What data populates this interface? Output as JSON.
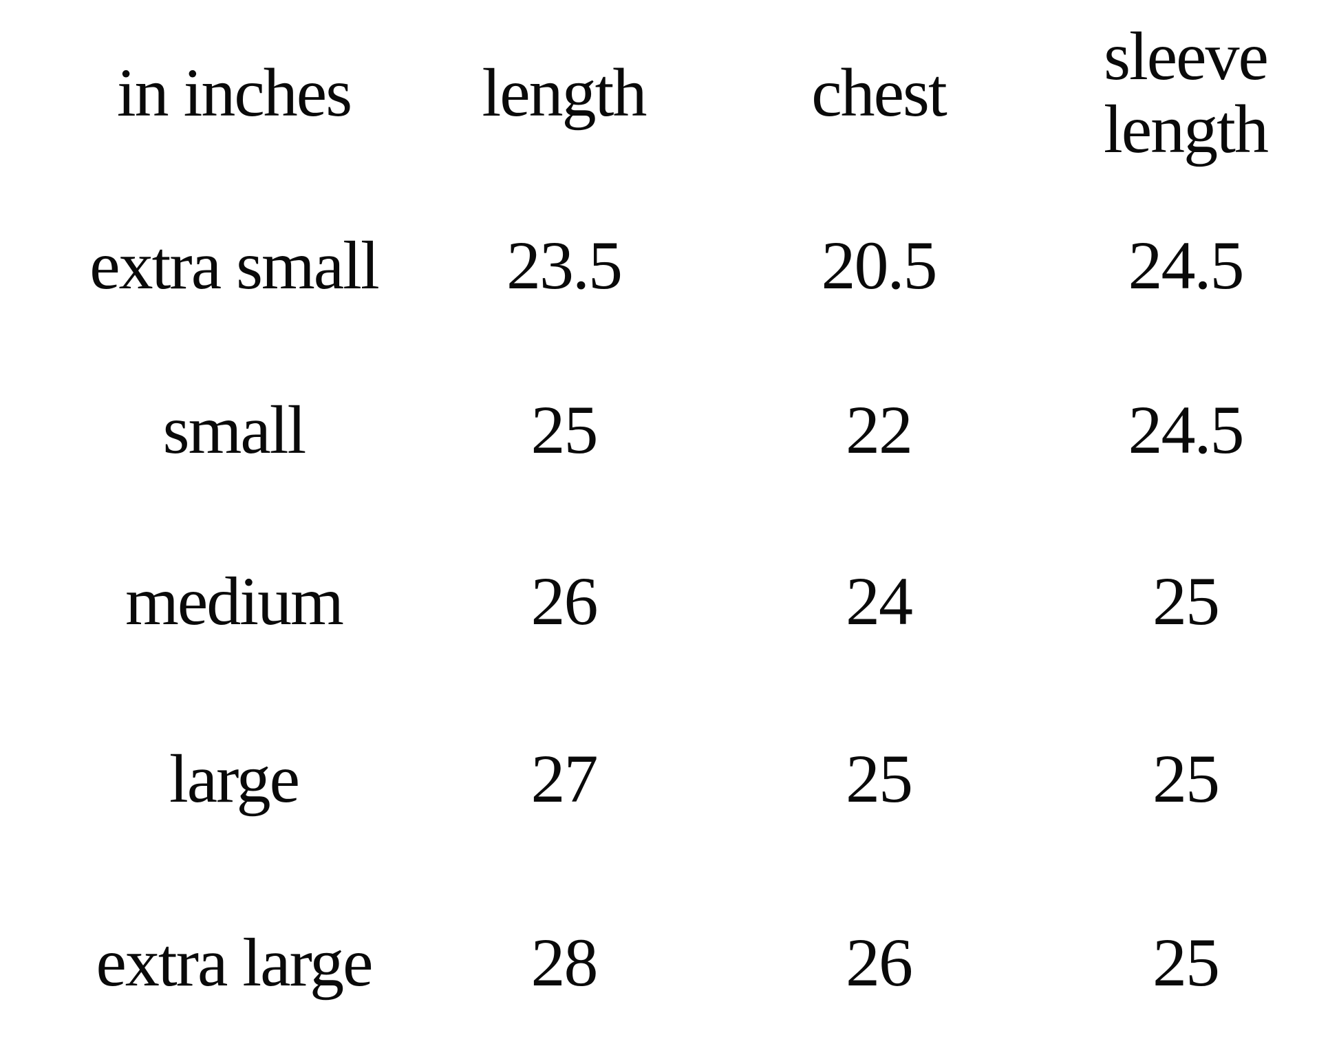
{
  "page": {
    "background": "#ffffff",
    "text_color": "#0a0a0a"
  },
  "size_chart": {
    "unit_header": "in inches",
    "column_headers": [
      "length",
      "chest",
      "sleeve length"
    ],
    "rows": [
      {
        "size": "extra small",
        "values": [
          "23.5",
          "20.5",
          "24.5"
        ]
      },
      {
        "size": "small",
        "values": [
          "25",
          "22",
          "24.5"
        ]
      },
      {
        "size": "medium",
        "values": [
          "26",
          "24",
          "25"
        ]
      },
      {
        "size": "large",
        "values": [
          "27",
          "25",
          "25"
        ]
      },
      {
        "size": "extra large",
        "values": [
          "28",
          "26",
          "25"
        ]
      }
    ]
  },
  "chart_data": {
    "type": "table",
    "columns": [
      "in inches",
      "length",
      "chest",
      "sleeve length"
    ],
    "rows": [
      [
        "extra small",
        23.5,
        20.5,
        24.5
      ],
      [
        "small",
        25,
        22,
        24.5
      ],
      [
        "medium",
        26,
        24,
        25
      ],
      [
        "large",
        27,
        25,
        25
      ],
      [
        "extra large",
        28,
        26,
        25
      ]
    ],
    "layout_hints": {
      "grid": false,
      "borders": false,
      "alignment": "center",
      "unit": "inches"
    }
  }
}
